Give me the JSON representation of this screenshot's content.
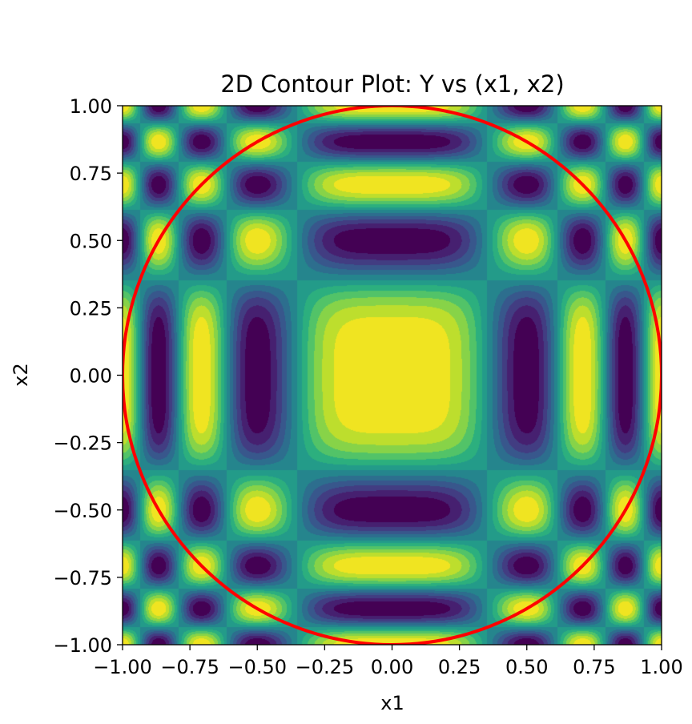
{
  "chart_data": {
    "type": "contour",
    "title": "2D Contour Plot: Y vs (x1, x2)",
    "xlabel": "x1",
    "ylabel": "x2",
    "xlim": [
      -1.0,
      1.0
    ],
    "ylim": [
      -1.0,
      1.0
    ],
    "xticks": [
      -1.0,
      -0.75,
      -0.5,
      -0.25,
      0.0,
      0.25,
      0.5,
      0.75,
      1.0
    ],
    "yticks": [
      -1.0,
      -0.75,
      -0.5,
      -0.25,
      0.0,
      0.25,
      0.5,
      0.75,
      1.0
    ],
    "xtick_labels": [
      "−1.00",
      "−0.75",
      "−0.50",
      "−0.25",
      "0.00",
      "0.25",
      "0.50",
      "0.75",
      "1.00"
    ],
    "ytick_labels": [
      "−1.00",
      "−0.75",
      "−0.50",
      "−0.25",
      "0.00",
      "0.25",
      "0.50",
      "0.75",
      "1.00"
    ],
    "colormap": "viridis",
    "filled": true,
    "grid": false,
    "overlay": {
      "shape": "circle",
      "center": [
        0.0,
        0.0
      ],
      "radius": 1.0,
      "color": "#ff0000"
    }
  }
}
